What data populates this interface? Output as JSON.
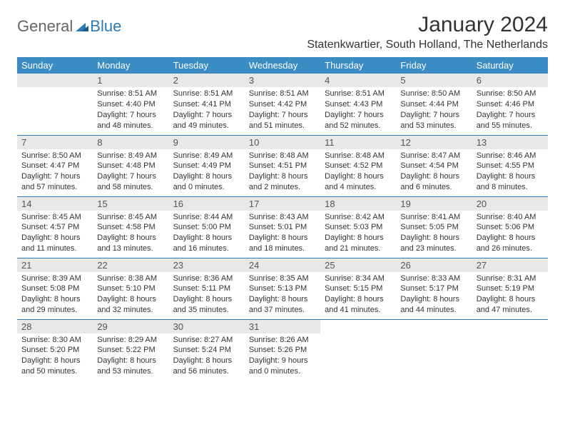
{
  "logo": {
    "general": "General",
    "blue": "Blue"
  },
  "title": "January 2024",
  "location": "Statenkwartier, South Holland, The Netherlands",
  "colors": {
    "header_bg": "#3b8bc4",
    "header_text": "#ffffff",
    "daynum_bg": "#e8e8e8",
    "border": "#2a7ab8",
    "logo_gray": "#666666",
    "logo_blue": "#2a7ab8",
    "body_text": "#333333",
    "background": "#ffffff"
  },
  "typography": {
    "title_fontsize": 30,
    "location_fontsize": 16,
    "header_fontsize": 13,
    "daynum_fontsize": 13,
    "body_fontsize": 11
  },
  "weekdays": [
    "Sunday",
    "Monday",
    "Tuesday",
    "Wednesday",
    "Thursday",
    "Friday",
    "Saturday"
  ],
  "weeks": [
    [
      {
        "n": "",
        "sr": "",
        "ss": "",
        "dl": ""
      },
      {
        "n": "1",
        "sr": "Sunrise: 8:51 AM",
        "ss": "Sunset: 4:40 PM",
        "dl": "Daylight: 7 hours and 48 minutes."
      },
      {
        "n": "2",
        "sr": "Sunrise: 8:51 AM",
        "ss": "Sunset: 4:41 PM",
        "dl": "Daylight: 7 hours and 49 minutes."
      },
      {
        "n": "3",
        "sr": "Sunrise: 8:51 AM",
        "ss": "Sunset: 4:42 PM",
        "dl": "Daylight: 7 hours and 51 minutes."
      },
      {
        "n": "4",
        "sr": "Sunrise: 8:51 AM",
        "ss": "Sunset: 4:43 PM",
        "dl": "Daylight: 7 hours and 52 minutes."
      },
      {
        "n": "5",
        "sr": "Sunrise: 8:50 AM",
        "ss": "Sunset: 4:44 PM",
        "dl": "Daylight: 7 hours and 53 minutes."
      },
      {
        "n": "6",
        "sr": "Sunrise: 8:50 AM",
        "ss": "Sunset: 4:46 PM",
        "dl": "Daylight: 7 hours and 55 minutes."
      }
    ],
    [
      {
        "n": "7",
        "sr": "Sunrise: 8:50 AM",
        "ss": "Sunset: 4:47 PM",
        "dl": "Daylight: 7 hours and 57 minutes."
      },
      {
        "n": "8",
        "sr": "Sunrise: 8:49 AM",
        "ss": "Sunset: 4:48 PM",
        "dl": "Daylight: 7 hours and 58 minutes."
      },
      {
        "n": "9",
        "sr": "Sunrise: 8:49 AM",
        "ss": "Sunset: 4:49 PM",
        "dl": "Daylight: 8 hours and 0 minutes."
      },
      {
        "n": "10",
        "sr": "Sunrise: 8:48 AM",
        "ss": "Sunset: 4:51 PM",
        "dl": "Daylight: 8 hours and 2 minutes."
      },
      {
        "n": "11",
        "sr": "Sunrise: 8:48 AM",
        "ss": "Sunset: 4:52 PM",
        "dl": "Daylight: 8 hours and 4 minutes."
      },
      {
        "n": "12",
        "sr": "Sunrise: 8:47 AM",
        "ss": "Sunset: 4:54 PM",
        "dl": "Daylight: 8 hours and 6 minutes."
      },
      {
        "n": "13",
        "sr": "Sunrise: 8:46 AM",
        "ss": "Sunset: 4:55 PM",
        "dl": "Daylight: 8 hours and 8 minutes."
      }
    ],
    [
      {
        "n": "14",
        "sr": "Sunrise: 8:45 AM",
        "ss": "Sunset: 4:57 PM",
        "dl": "Daylight: 8 hours and 11 minutes."
      },
      {
        "n": "15",
        "sr": "Sunrise: 8:45 AM",
        "ss": "Sunset: 4:58 PM",
        "dl": "Daylight: 8 hours and 13 minutes."
      },
      {
        "n": "16",
        "sr": "Sunrise: 8:44 AM",
        "ss": "Sunset: 5:00 PM",
        "dl": "Daylight: 8 hours and 16 minutes."
      },
      {
        "n": "17",
        "sr": "Sunrise: 8:43 AM",
        "ss": "Sunset: 5:01 PM",
        "dl": "Daylight: 8 hours and 18 minutes."
      },
      {
        "n": "18",
        "sr": "Sunrise: 8:42 AM",
        "ss": "Sunset: 5:03 PM",
        "dl": "Daylight: 8 hours and 21 minutes."
      },
      {
        "n": "19",
        "sr": "Sunrise: 8:41 AM",
        "ss": "Sunset: 5:05 PM",
        "dl": "Daylight: 8 hours and 23 minutes."
      },
      {
        "n": "20",
        "sr": "Sunrise: 8:40 AM",
        "ss": "Sunset: 5:06 PM",
        "dl": "Daylight: 8 hours and 26 minutes."
      }
    ],
    [
      {
        "n": "21",
        "sr": "Sunrise: 8:39 AM",
        "ss": "Sunset: 5:08 PM",
        "dl": "Daylight: 8 hours and 29 minutes."
      },
      {
        "n": "22",
        "sr": "Sunrise: 8:38 AM",
        "ss": "Sunset: 5:10 PM",
        "dl": "Daylight: 8 hours and 32 minutes."
      },
      {
        "n": "23",
        "sr": "Sunrise: 8:36 AM",
        "ss": "Sunset: 5:11 PM",
        "dl": "Daylight: 8 hours and 35 minutes."
      },
      {
        "n": "24",
        "sr": "Sunrise: 8:35 AM",
        "ss": "Sunset: 5:13 PM",
        "dl": "Daylight: 8 hours and 37 minutes."
      },
      {
        "n": "25",
        "sr": "Sunrise: 8:34 AM",
        "ss": "Sunset: 5:15 PM",
        "dl": "Daylight: 8 hours and 41 minutes."
      },
      {
        "n": "26",
        "sr": "Sunrise: 8:33 AM",
        "ss": "Sunset: 5:17 PM",
        "dl": "Daylight: 8 hours and 44 minutes."
      },
      {
        "n": "27",
        "sr": "Sunrise: 8:31 AM",
        "ss": "Sunset: 5:19 PM",
        "dl": "Daylight: 8 hours and 47 minutes."
      }
    ],
    [
      {
        "n": "28",
        "sr": "Sunrise: 8:30 AM",
        "ss": "Sunset: 5:20 PM",
        "dl": "Daylight: 8 hours and 50 minutes."
      },
      {
        "n": "29",
        "sr": "Sunrise: 8:29 AM",
        "ss": "Sunset: 5:22 PM",
        "dl": "Daylight: 8 hours and 53 minutes."
      },
      {
        "n": "30",
        "sr": "Sunrise: 8:27 AM",
        "ss": "Sunset: 5:24 PM",
        "dl": "Daylight: 8 hours and 56 minutes."
      },
      {
        "n": "31",
        "sr": "Sunrise: 8:26 AM",
        "ss": "Sunset: 5:26 PM",
        "dl": "Daylight: 9 hours and 0 minutes."
      },
      {
        "n": "",
        "sr": "",
        "ss": "",
        "dl": ""
      },
      {
        "n": "",
        "sr": "",
        "ss": "",
        "dl": ""
      },
      {
        "n": "",
        "sr": "",
        "ss": "",
        "dl": ""
      }
    ]
  ]
}
